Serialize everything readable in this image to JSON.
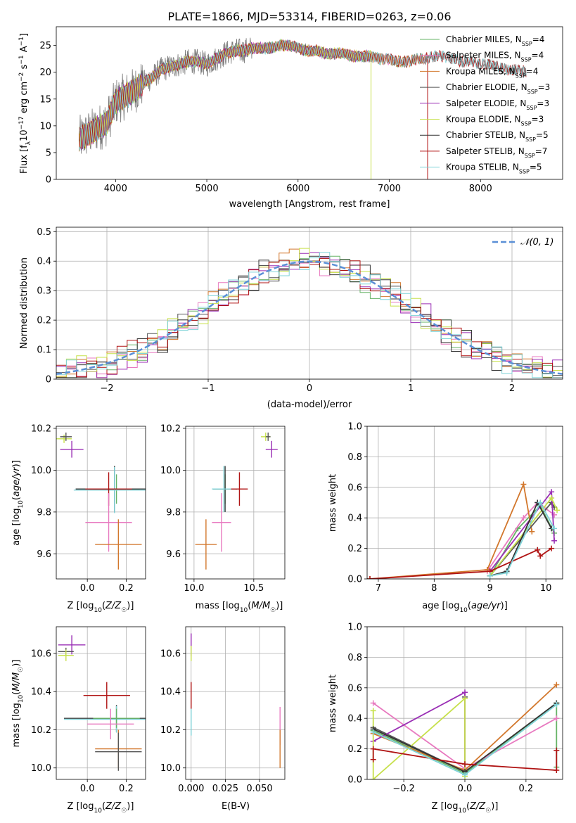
{
  "figure_title": "PLATE=1866, MJD=53314, FIBERID=0263, z=0.06",
  "colors": {
    "Chabrier MILES": "#66b366",
    "Salpeter MILES": "#e87ac0",
    "Kroupa MILES": "#d2772c",
    "Chabrier ELODIE": "#555555",
    "Salpeter ELODIE": "#9a2fb5",
    "Kroupa ELODIE": "#c6e04a",
    "Chabrier STELIB": "#333333",
    "Salpeter STELIB": "#b01414",
    "Kroupa STELIB": "#7fd3d8",
    "normal_curve": "#5a8fd6",
    "grid": "#b0b0b0"
  },
  "chart_data": [
    {
      "id": "spectrum",
      "type": "line",
      "title": "PLATE=1866, MJD=53314, FIBERID=0263, z=0.06",
      "xlabel": "wavelength [Angstrom, rest frame]",
      "ylabel": "Flux [f_λ 10^-17 erg cm^-2 s^-1 A^-1]",
      "xlim": [
        3350,
        8900
      ],
      "ylim": [
        0,
        28.5
      ],
      "xticks": [
        4000,
        5000,
        6000,
        7000,
        8000
      ],
      "yticks": [
        0,
        5,
        10,
        15,
        20,
        25
      ],
      "grid": false,
      "legend": "upper right",
      "legend_entries": [
        {
          "label": "Chabrier MILES, N",
          "sub": "SSP",
          "suffix": "=4",
          "series": "Chabrier MILES"
        },
        {
          "label": "Salpeter MILES, N",
          "sub": "SSP",
          "suffix": "=4",
          "series": "Salpeter MILES"
        },
        {
          "label": "Kroupa MILES, N",
          "sub": "SSP",
          "suffix": "=4",
          "series": "Kroupa MILES"
        },
        {
          "label": "Chabrier ELODIE, N",
          "sub": "SSP",
          "suffix": "=3",
          "series": "Chabrier ELODIE"
        },
        {
          "label": "Salpeter ELODIE, N",
          "sub": "SSP",
          "suffix": "=3",
          "series": "Salpeter ELODIE"
        },
        {
          "label": "Kroupa ELODIE, N",
          "sub": "SSP",
          "suffix": "=3",
          "series": "Kroupa ELODIE"
        },
        {
          "label": "Chabrier STELIB, N",
          "sub": "SSP",
          "suffix": "=5",
          "series": "Chabrier STELIB"
        },
        {
          "label": "Salpeter STELIB, N",
          "sub": "SSP",
          "suffix": "=7",
          "series": "Salpeter STELIB"
        },
        {
          "label": "Kroupa STELIB, N",
          "sub": "SSP",
          "suffix": "=5",
          "series": "Kroupa STELIB"
        }
      ],
      "data_envelope": {
        "x": [
          3600,
          3700,
          3800,
          3900,
          4000,
          4100,
          4200,
          4300,
          4400,
          4500,
          4600,
          4700,
          4800,
          4900,
          5000,
          5100,
          5200,
          5300,
          5400,
          5500,
          5600,
          5700,
          5800,
          5900,
          6000,
          6100,
          6200,
          6300,
          6400,
          6500,
          6600,
          6700,
          6800,
          6900,
          7000,
          7100,
          7200,
          7300,
          7400,
          7500,
          7600,
          7700,
          7800,
          7900,
          8000,
          8100,
          8200,
          8300,
          8400,
          8500
        ],
        "y": [
          7.5,
          8.5,
          9.5,
          10.5,
          14.5,
          15.5,
          16.5,
          18.0,
          19.0,
          20.5,
          21.0,
          21.5,
          22.0,
          22.0,
          21.5,
          22.5,
          23.5,
          24.0,
          24.0,
          24.5,
          24.5,
          24.5,
          25.0,
          25.0,
          24.5,
          24.0,
          24.0,
          23.5,
          23.5,
          23.5,
          23.0,
          23.0,
          23.0,
          22.5,
          22.5,
          22.0,
          22.0,
          22.5,
          22.5,
          23.0,
          23.0,
          22.5,
          22.0,
          22.0,
          21.5,
          21.5,
          21.0,
          20.5,
          20.5,
          20.0
        ]
      },
      "spikes": [
        {
          "series": "Kroupa ELODIE",
          "x": 6800,
          "y": 0
        },
        {
          "series": "Salpeter STELIB",
          "x": 7420,
          "y": 0
        }
      ]
    },
    {
      "id": "residual_hist",
      "type": "line",
      "xlabel": "(data-model)/error",
      "ylabel": "Normed distribution",
      "xlim": [
        -2.5,
        2.5
      ],
      "ylim": [
        0,
        0.515
      ],
      "xticks": [
        -2,
        -1,
        0,
        1,
        2
      ],
      "yticks": [
        0.0,
        0.1,
        0.2,
        0.3,
        0.4,
        0.5
      ],
      "grid": true,
      "legend": "upper right",
      "legend_entries": [
        {
          "label": "𝒩(0, 1)",
          "series": "normal_curve"
        }
      ],
      "bin_width": 0.1,
      "noise_amplitude": 0.035,
      "series_order": [
        "Chabrier MILES",
        "Salpeter MILES",
        "Kroupa MILES",
        "Chabrier ELODIE",
        "Salpeter ELODIE",
        "Kroupa ELODIE",
        "Chabrier STELIB",
        "Salpeter STELIB",
        "Kroupa STELIB"
      ]
    },
    {
      "id": "age_vs_Z",
      "type": "scatter",
      "xlabel": "Z [log10(Z/Z☉)]",
      "ylabel": "age [log10(age/yr)]",
      "xlim": [
        -0.16,
        0.3
      ],
      "ylim": [
        9.48,
        10.21
      ],
      "xticks": [
        0.0,
        0.2
      ],
      "xticklabels": [
        "0.0",
        "0.2"
      ],
      "yticks": [
        9.6,
        9.8,
        10.0,
        10.2
      ],
      "yticklabels": [
        "9.6",
        "9.8",
        "10.0",
        "10.2"
      ],
      "grid": true,
      "points": [
        {
          "series": "Kroupa ELODIE",
          "x": -0.12,
          "y": 10.15,
          "xerr": 0.04,
          "yerr": 0.02
        },
        {
          "series": "Chabrier ELODIE",
          "x": -0.11,
          "y": 10.16,
          "xerr": 0.03,
          "yerr": 0.02
        },
        {
          "series": "Salpeter ELODIE",
          "x": -0.08,
          "y": 10.1,
          "xerr": 0.06,
          "yerr": 0.04
        },
        {
          "series": "Chabrier MILES",
          "x": 0.15,
          "y": 9.91,
          "xerr": 0.12,
          "yerr": 0.07
        },
        {
          "series": "Chabrier STELIB",
          "x": 0.14,
          "y": 9.91,
          "xerr": 0.2,
          "yerr": 0.11
        },
        {
          "series": "Kroupa STELIB",
          "x": 0.14,
          "y": 9.905,
          "xerr": 0.21,
          "yerr": 0.11
        },
        {
          "series": "Salpeter STELIB",
          "x": 0.11,
          "y": 9.91,
          "xerr": 0.12,
          "yerr": 0.08
        },
        {
          "series": "Salpeter MILES",
          "x": 0.11,
          "y": 9.75,
          "xerr": 0.12,
          "yerr": 0.14
        },
        {
          "series": "Kroupa MILES",
          "x": 0.16,
          "y": 9.645,
          "xerr": 0.12,
          "yerr": 0.12
        }
      ]
    },
    {
      "id": "age_vs_mass",
      "type": "scatter",
      "xlabel": "mass [log10(M/M☉)]",
      "ylabel": "",
      "xlim": [
        9.93,
        10.76
      ],
      "ylim": [
        9.48,
        10.21
      ],
      "xticks": [
        10.0,
        10.5
      ],
      "xticklabels": [
        "10.0",
        "10.5"
      ],
      "yticks": [
        9.6,
        9.8,
        10.0,
        10.2
      ],
      "yticklabels": [
        "9.6",
        "9.8",
        "10.0",
        "10.2"
      ],
      "grid": true,
      "points": [
        {
          "series": "Kroupa ELODIE",
          "x": 10.6,
          "y": 10.16,
          "xerr": 0.04,
          "yerr": 0.02
        },
        {
          "series": "Chabrier ELODIE",
          "x": 10.62,
          "y": 10.16,
          "xerr": 0.02,
          "yerr": 0.02
        },
        {
          "series": "Salpeter ELODIE",
          "x": 10.65,
          "y": 10.1,
          "xerr": 0.05,
          "yerr": 0.04
        },
        {
          "series": "Chabrier MILES",
          "x": 10.26,
          "y": 9.91,
          "xerr": 0.1,
          "yerr": 0.07
        },
        {
          "series": "Chabrier STELIB",
          "x": 10.26,
          "y": 9.91,
          "xerr": 0.1,
          "yerr": 0.11
        },
        {
          "series": "Kroupa STELIB",
          "x": 10.25,
          "y": 9.91,
          "xerr": 0.1,
          "yerr": 0.11
        },
        {
          "series": "Salpeter STELIB",
          "x": 10.38,
          "y": 9.91,
          "xerr": 0.07,
          "yerr": 0.08
        },
        {
          "series": "Salpeter MILES",
          "x": 10.23,
          "y": 9.75,
          "xerr": 0.08,
          "yerr": 0.14
        },
        {
          "series": "Kroupa MILES",
          "x": 10.1,
          "y": 9.645,
          "xerr": 0.09,
          "yerr": 0.12
        }
      ]
    },
    {
      "id": "massweight_vs_age",
      "type": "line",
      "xlabel": "age [log10(age/yr)]",
      "ylabel": "mass weight",
      "xlim": [
        6.8,
        10.3
      ],
      "ylim": [
        0,
        1.0
      ],
      "xticks": [
        7,
        8,
        9,
        10
      ],
      "xticklabels": [
        "7",
        "8",
        "9",
        "10"
      ],
      "yticks": [
        0.0,
        0.2,
        0.4,
        0.6,
        0.8,
        1.0
      ],
      "yticklabels": [
        "0.0",
        "0.2",
        "0.4",
        "0.6",
        "0.8",
        "1.0"
      ],
      "grid": true,
      "series": [
        {
          "name": "Chabrier MILES",
          "x": [
            9.0,
            9.5,
            9.9,
            10.15
          ],
          "y": [
            0.02,
            0.33,
            0.48,
            0.3
          ]
        },
        {
          "name": "Salpeter MILES",
          "x": [
            8.95,
            9.6,
            9.85,
            10.15
          ],
          "y": [
            0.05,
            0.4,
            0.5,
            0.42
          ]
        },
        {
          "name": "Kroupa MILES",
          "x": [
            6.85,
            8.95,
            9.6,
            9.75
          ],
          "y": [
            0.0,
            0.06,
            0.62,
            0.31
          ]
        },
        {
          "name": "Chabrier ELODIE",
          "x": [
            9.0,
            10.1,
            10.15
          ],
          "y": [
            0.02,
            0.5,
            0.47
          ]
        },
        {
          "name": "Salpeter ELODIE",
          "x": [
            9.0,
            10.1,
            10.15
          ],
          "y": [
            0.05,
            0.57,
            0.25
          ]
        },
        {
          "name": "Kroupa ELODIE",
          "x": [
            9.0,
            10.1,
            10.2
          ],
          "y": [
            0.02,
            0.53,
            0.45
          ]
        },
        {
          "name": "Chabrier STELIB",
          "x": [
            9.0,
            9.3,
            9.85,
            10.1
          ],
          "y": [
            0.02,
            0.05,
            0.5,
            0.33
          ]
        },
        {
          "name": "Salpeter STELIB",
          "x": [
            6.85,
            9.0,
            9.85,
            9.9,
            10.1
          ],
          "y": [
            0.0,
            0.05,
            0.19,
            0.15,
            0.2
          ]
        },
        {
          "name": "Kroupa STELIB",
          "x": [
            9.0,
            9.3,
            9.9,
            10.15
          ],
          "y": [
            0.02,
            0.04,
            0.5,
            0.33
          ]
        }
      ]
    },
    {
      "id": "mass_vs_Z",
      "type": "scatter",
      "xlabel": "Z [log10(Z/Z☉)]",
      "ylabel": "mass [log10(M/M☉)]",
      "xlim": [
        -0.16,
        0.3
      ],
      "ylim": [
        9.94,
        10.74
      ],
      "xticks": [
        0.0,
        0.2
      ],
      "xticklabels": [
        "0.0",
        "0.2"
      ],
      "yticks": [
        10.0,
        10.2,
        10.4,
        10.6
      ],
      "yticklabels": [
        "10.0",
        "10.2",
        "10.4",
        "10.6"
      ],
      "grid": true,
      "points": [
        {
          "series": "Salpeter ELODIE",
          "x": -0.08,
          "y": 10.645,
          "xerr": 0.07,
          "yerr": 0.05
        },
        {
          "series": "Chabrier ELODIE",
          "x": -0.11,
          "y": 10.61,
          "xerr": 0.04,
          "yerr": 0.02
        },
        {
          "series": "Kroupa ELODIE",
          "x": -0.11,
          "y": 10.59,
          "xerr": 0.04,
          "yerr": 0.03
        },
        {
          "series": "Salpeter STELIB",
          "x": 0.1,
          "y": 10.38,
          "xerr": 0.12,
          "yerr": 0.07
        },
        {
          "series": "Chabrier STELIB",
          "x": 0.15,
          "y": 10.26,
          "xerr": 0.27,
          "yerr": 0.07
        },
        {
          "series": "Kroupa STELIB",
          "x": 0.15,
          "y": 10.255,
          "xerr": 0.27,
          "yerr": 0.07
        },
        {
          "series": "Chabrier MILES",
          "x": 0.15,
          "y": 10.26,
          "xerr": 0.12,
          "yerr": 0.05
        },
        {
          "series": "Salpeter MILES",
          "x": 0.12,
          "y": 10.23,
          "xerr": 0.12,
          "yerr": 0.08
        },
        {
          "series": "Kroupa MILES",
          "x": 0.16,
          "y": 10.1,
          "xerr": 0.12,
          "yerr": 0.1
        },
        {
          "series": "Chabrier ELODIE",
          "x": 0.16,
          "y": 10.085,
          "xerr": 0.12,
          "yerr": 0.1
        }
      ]
    },
    {
      "id": "mass_vs_ebv",
      "type": "scatter",
      "xlabel": "E(B-V)",
      "ylabel": "",
      "xlim": [
        -0.004,
        0.0685
      ],
      "ylim": [
        9.94,
        10.74
      ],
      "xticks": [
        0.0,
        0.025,
        0.05
      ],
      "xticklabels": [
        "0.000",
        "0.025",
        "0.050"
      ],
      "yticks": [
        10.0,
        10.2,
        10.4,
        10.6
      ],
      "yticklabels": [
        "10.0",
        "10.2",
        "10.4",
        "10.6"
      ],
      "grid": true,
      "points": [
        {
          "series": "Salpeter ELODIE",
          "x": 0.0,
          "y": 10.645,
          "xerr": 0,
          "yerr": 0.06
        },
        {
          "series": "Kroupa ELODIE",
          "x": 0.0,
          "y": 10.6,
          "xerr": 0,
          "yerr": 0.04
        },
        {
          "series": "Salpeter STELIB",
          "x": 0.0,
          "y": 10.38,
          "xerr": 0,
          "yerr": 0.07
        },
        {
          "series": "Kroupa STELIB",
          "x": 0.0,
          "y": 10.24,
          "xerr": 0,
          "yerr": 0.07
        },
        {
          "series": "Salpeter MILES",
          "x": 0.065,
          "y": 10.22,
          "xerr": 0,
          "yerr": 0.1
        },
        {
          "series": "Kroupa MILES",
          "x": 0.065,
          "y": 10.1,
          "xerr": 0,
          "yerr": 0.1
        }
      ]
    },
    {
      "id": "massweight_vs_Z",
      "type": "line",
      "xlabel": "Z [log10(Z/Z☉)]",
      "ylabel": "mass weight",
      "xlim": [
        -0.32,
        0.32
      ],
      "ylim": [
        0,
        1.0
      ],
      "xticks": [
        -0.2,
        0.0,
        0.2
      ],
      "xticklabels": [
        "−0.2",
        "0.0",
        "0.2"
      ],
      "yticks": [
        0.0,
        0.2,
        0.4,
        0.6,
        0.8,
        1.0
      ],
      "yticklabels": [
        "0.0",
        "0.2",
        "0.4",
        "0.6",
        "0.8",
        "1.0"
      ],
      "grid": true,
      "series": [
        {
          "name": "Chabrier MILES",
          "x": [
            -0.3,
            0.0,
            0.3,
            0.3
          ],
          "y": [
            0.32,
            0.04,
            0.5,
            0.08
          ]
        },
        {
          "name": "Salpeter MILES",
          "x": [
            -0.3,
            0.0,
            0.3
          ],
          "y": [
            0.5,
            0.07,
            0.4
          ]
        },
        {
          "name": "Kroupa MILES",
          "x": [
            -0.3,
            0.0,
            0.3
          ],
          "y": [
            0.3,
            0.06,
            0.62
          ]
        },
        {
          "name": "Chabrier ELODIE",
          "x": [
            -0.3,
            0.0,
            0.0
          ],
          "y": [
            0.34,
            0.05,
            0.54
          ]
        },
        {
          "name": "Salpeter ELODIE",
          "x": [
            -0.3,
            0.0,
            0.0
          ],
          "y": [
            0.25,
            0.57,
            0.05
          ]
        },
        {
          "name": "Kroupa ELODIE",
          "x": [
            -0.3,
            -0.3,
            0.0,
            0.0
          ],
          "y": [
            0.45,
            0.0,
            0.53,
            0.02
          ]
        },
        {
          "name": "Chabrier STELIB",
          "x": [
            -0.3,
            0.0,
            0.3
          ],
          "y": [
            0.33,
            0.05,
            0.5
          ]
        },
        {
          "name": "Salpeter STELIB",
          "x": [
            -0.3,
            -0.3,
            0.0,
            0.3,
            0.3
          ],
          "y": [
            0.13,
            0.2,
            0.1,
            0.06,
            0.19
          ]
        },
        {
          "name": "Kroupa STELIB",
          "x": [
            -0.3,
            0.0,
            0.3
          ],
          "y": [
            0.31,
            0.03,
            0.49
          ]
        }
      ]
    }
  ]
}
